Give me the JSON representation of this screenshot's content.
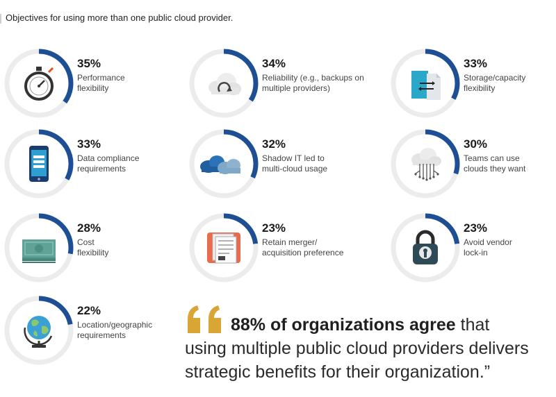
{
  "title": "Objectives for using more than one public cloud provider.",
  "colors": {
    "ring_track": "#ececec",
    "ring_value": "#1e4f94",
    "quote_mark": "#d9a534"
  },
  "chart_data": {
    "type": "bar",
    "title": "Objectives for using more than one public cloud provider.",
    "categories": [
      "Performance flexibility",
      "Reliability (e.g., backups on multiple providers)",
      "Storage/capacity flexibility",
      "Data compliance requirements",
      "Shadow IT led to multi-cloud usage",
      "Teams can use clouds they want",
      "Cost flexibility",
      "Retain merger/ acquisition preference",
      "Avoid vendor lock-in",
      "Location/geographic requirements"
    ],
    "values": [
      35,
      34,
      33,
      33,
      32,
      30,
      28,
      23,
      23,
      22
    ],
    "unit": "%"
  },
  "items": [
    {
      "pct": "35%",
      "line1": "Performance",
      "line2": "flexibility",
      "icon": "stopwatch-icon"
    },
    {
      "pct": "34%",
      "line1": "Reliability (e.g., backups on",
      "line2": "multiple providers)",
      "icon": "cloud-sync-icon"
    },
    {
      "pct": "33%",
      "line1": "Storage/capacity",
      "line2": "flexibility",
      "icon": "file-transfer-icon"
    },
    {
      "pct": "33%",
      "line1": "Data compliance",
      "line2": "requirements",
      "icon": "mobile-phone-icon"
    },
    {
      "pct": "32%",
      "line1": "Shadow IT led to",
      "line2": "multi-cloud usage",
      "icon": "multi-cloud-icon"
    },
    {
      "pct": "30%",
      "line1": "Teams can use",
      "line2": "clouds they want",
      "icon": "cloud-network-icon"
    },
    {
      "pct": "28%",
      "line1": "Cost",
      "line2": "flexibility",
      "icon": "money-icon"
    },
    {
      "pct": "23%",
      "line1": "Retain merger/",
      "line2": "acquisition preference",
      "icon": "documents-icon"
    },
    {
      "pct": "23%",
      "line1": "Avoid vendor",
      "line2": "lock-in",
      "icon": "padlock-icon"
    },
    {
      "pct": "22%",
      "line1": "Location/geographic",
      "line2": "requirements",
      "icon": "globe-icon"
    }
  ],
  "quote": {
    "bold": "88% of organizations agree",
    "rest1": " that",
    "line2": "using multiple public cloud providers delivers",
    "line3": "strategic benefits for their organization.”"
  }
}
